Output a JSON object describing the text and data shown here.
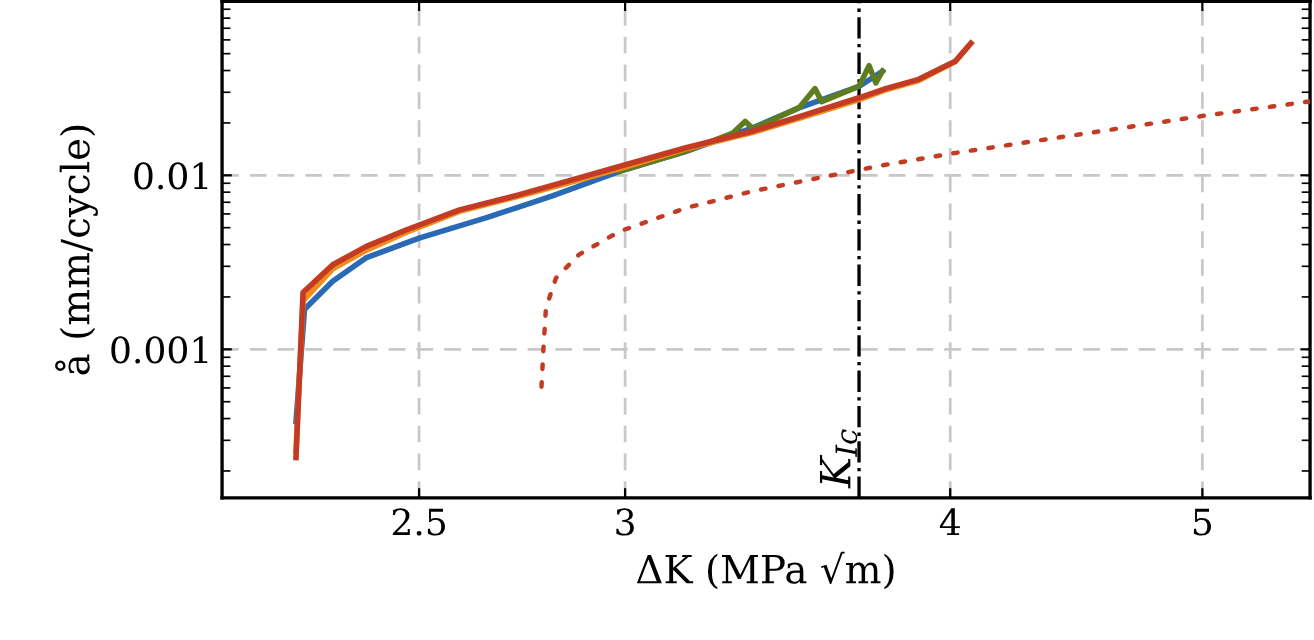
{
  "chart_data": {
    "type": "line",
    "xlabel": "ΔK (MPa √m)",
    "ylabel": "å (mm/cycle)",
    "log": "xy",
    "xlim": [
      2.1,
      5.5
    ],
    "ylim": [
      0.00014,
      0.1
    ],
    "xticks": [
      2.5,
      3,
      4,
      5
    ],
    "yticks": [
      0.001,
      0.01
    ],
    "grid": true,
    "legend": false,
    "marker": "none",
    "ref_lines": [
      {
        "axis": "x",
        "value": 3.69,
        "label": "K$_{Ic}$",
        "color": "#000000",
        "line_style": "dashdot"
      }
    ],
    "series": [
      {
        "color": "#2a6ab5",
        "line_style": "solid",
        "x": [
          2.242,
          2.259,
          2.316,
          2.385,
          2.5,
          2.652,
          2.813,
          2.985,
          3.166,
          3.357,
          3.499,
          3.69,
          3.767
        ],
        "values": [
          0.000385,
          0.0017,
          0.00246,
          0.00335,
          0.00436,
          0.00569,
          0.00762,
          0.01054,
          0.01374,
          0.0187,
          0.0244,
          0.0324,
          0.0396
        ]
      },
      {
        "color": "#5f7d1e",
        "line_style": "solid",
        "x": [
          2.985,
          3.166,
          3.3,
          3.336,
          3.36,
          3.5,
          3.549,
          3.57,
          3.69,
          3.723,
          3.745,
          3.767
        ],
        "values": [
          0.01054,
          0.01374,
          0.0175,
          0.0204,
          0.0185,
          0.0245,
          0.0315,
          0.0265,
          0.0325,
          0.0426,
          0.034,
          0.0396
        ]
      },
      {
        "color": "#f28a1c",
        "line_style": "solid",
        "x": [
          2.242,
          2.256,
          2.316,
          2.385,
          2.471,
          2.591,
          2.732,
          2.88,
          3.001,
          3.166,
          3.357,
          3.52,
          3.69,
          3.778,
          3.89,
          4.018,
          4.06
        ],
        "values": [
          0.00026,
          0.0019,
          0.0029,
          0.0037,
          0.0047,
          0.0062,
          0.0076,
          0.0094,
          0.0112,
          0.0142,
          0.0176,
          0.0218,
          0.0272,
          0.031,
          0.035,
          0.045,
          0.054
        ]
      },
      {
        "color": "#c23b22",
        "line_style": "solid",
        "x": [
          2.242,
          2.256,
          2.316,
          2.385,
          2.471,
          2.591,
          2.732,
          2.88,
          3.001,
          3.166,
          3.357,
          3.52,
          3.69,
          3.778,
          3.89,
          4.018,
          4.074
        ],
        "values": [
          0.000239,
          0.00212,
          0.00306,
          0.00389,
          0.00485,
          0.00633,
          0.00774,
          0.00966,
          0.0115,
          0.0144,
          0.0179,
          0.0223,
          0.0279,
          0.0315,
          0.0356,
          0.0452,
          0.0574
        ]
      },
      {
        "color": "#c23b22",
        "line_style": "dotted",
        "x": [
          2.786,
          2.791,
          2.797,
          2.822,
          2.88,
          2.985,
          3.166,
          3.357,
          3.56,
          3.778,
          4.008,
          4.998,
          5.5
        ],
        "values": [
          0.00061,
          0.00102,
          0.00173,
          0.00257,
          0.0035,
          0.00476,
          0.00649,
          0.00809,
          0.00966,
          0.0115,
          0.01337,
          0.0219,
          0.0266
        ]
      }
    ]
  }
}
